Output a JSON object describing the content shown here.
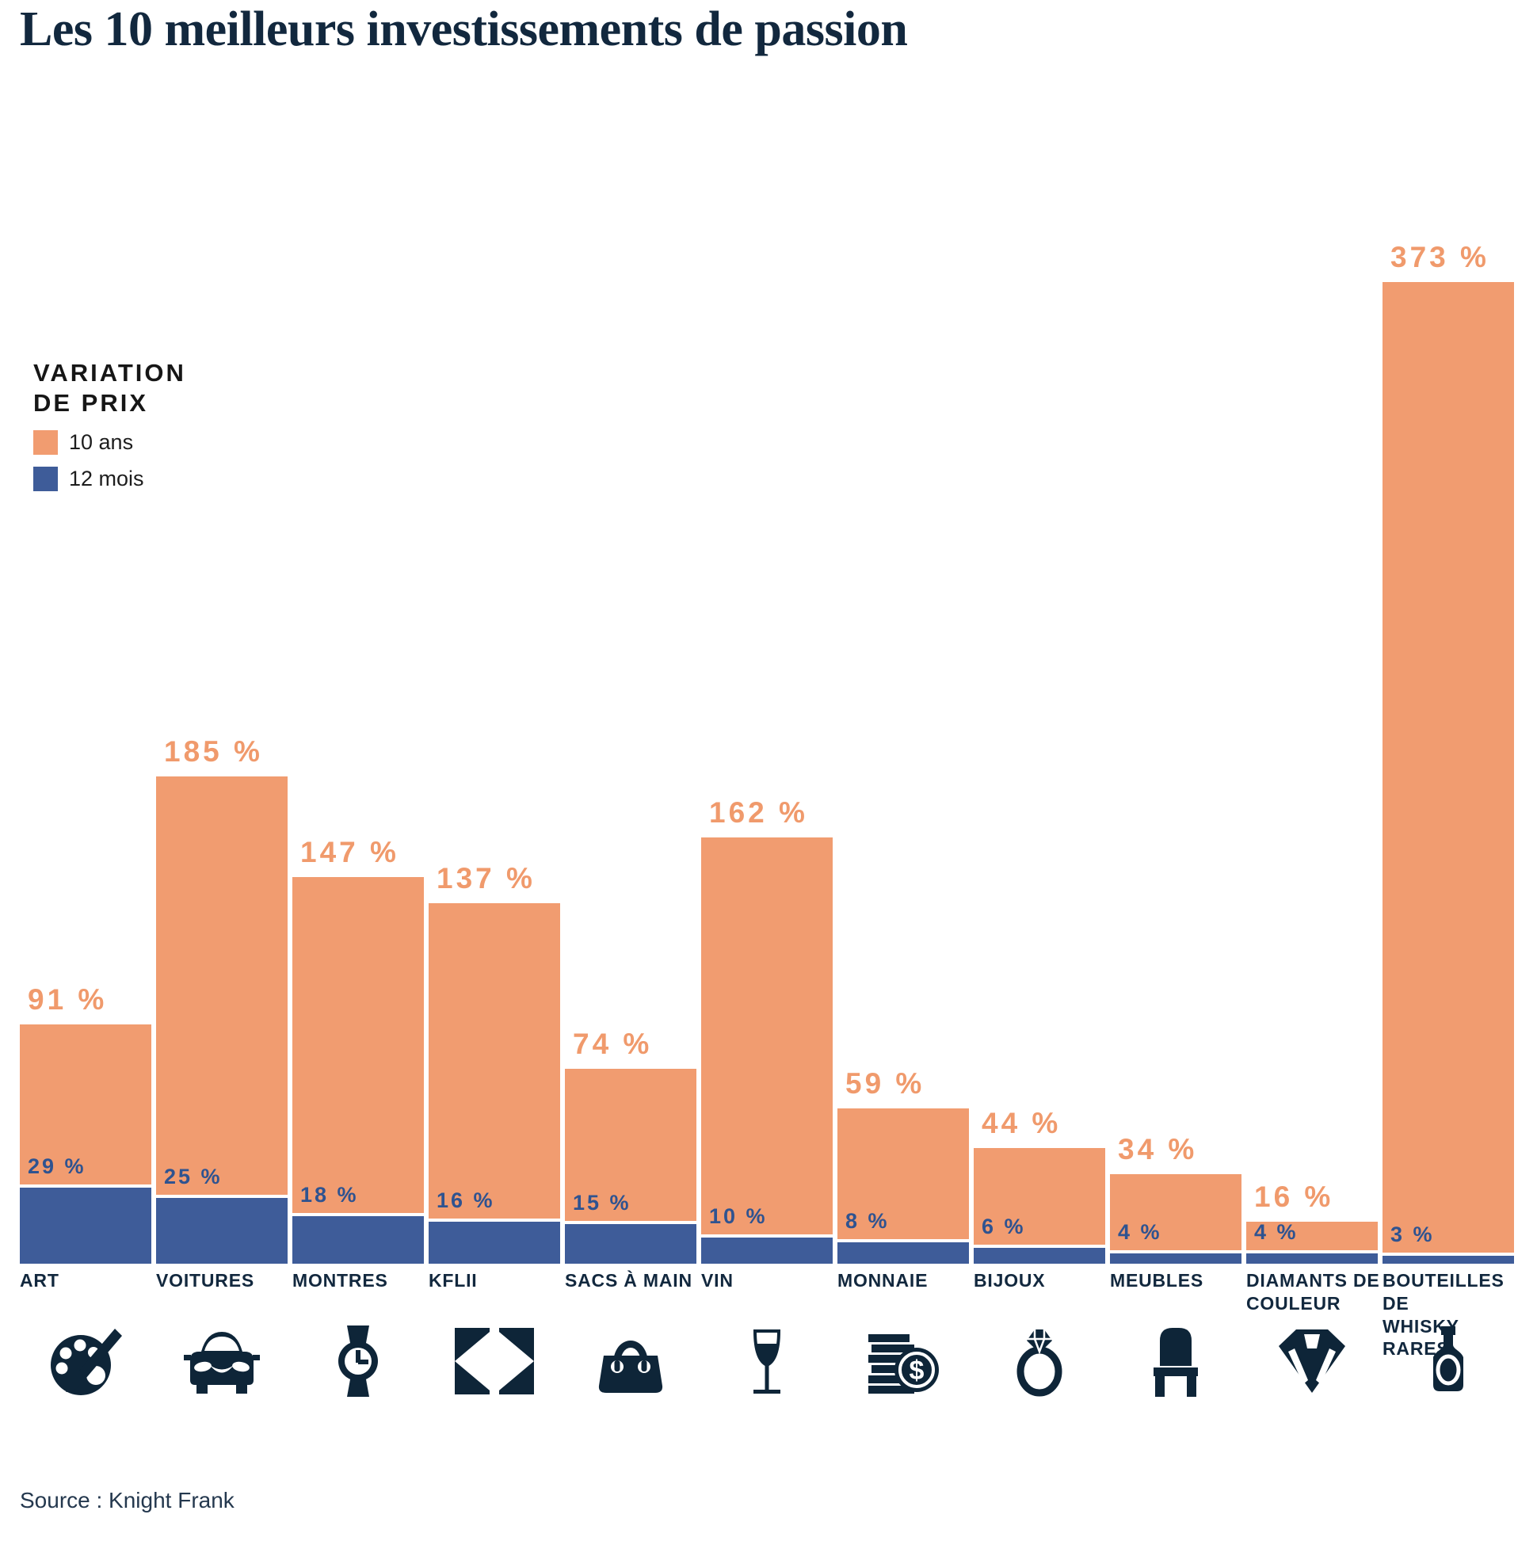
{
  "page": {
    "title": "Les 10 meilleurs investissements de passion",
    "source": "Source : Knight Frank",
    "background": "#FFFFFF"
  },
  "legend": {
    "title_lines": [
      "VARIATION",
      "DE PRIX"
    ],
    "items": [
      {
        "label": "10 ans",
        "color": "#F19C70"
      },
      {
        "label": "12 mois",
        "color": "#3E5C99"
      }
    ]
  },
  "chart_data": {
    "type": "bar",
    "unit": "%",
    "value_suffix": " %",
    "title": "Les 10 meilleurs investissements de passion",
    "categories": [
      "ART",
      "VOITURES",
      "MONTRES",
      "KFLII",
      "SACS À MAIN",
      "VIN",
      "MONNAIE",
      "BIJOUX",
      "MEUBLES",
      "DIAMANTS DE COULEUR",
      "BOUTEILLES DE WHISKY RARES"
    ],
    "category_lines": [
      [
        "ART"
      ],
      [
        "VOITURES"
      ],
      [
        "MONTRES"
      ],
      [
        "KFLII"
      ],
      [
        "SACS À MAIN"
      ],
      [
        "VIN"
      ],
      [
        "MONNAIE"
      ],
      [
        "BIJOUX"
      ],
      [
        "MEUBLES"
      ],
      [
        "DIAMANTS DE",
        "COULEUR"
      ],
      [
        "BOUTEILLES DE",
        "WHISKY RARES"
      ]
    ],
    "icons": [
      "palette-icon",
      "car-icon",
      "watch-icon",
      "kflii-logo-icon",
      "handbag-icon",
      "wine-glass-icon",
      "coins-icon",
      "ring-icon",
      "chair-icon",
      "diamond-icon",
      "whisky-bottle-icon"
    ],
    "series": [
      {
        "name": "10 ans",
        "color": "#F19C70",
        "label_color": "#F09A6C",
        "values": [
          91,
          185,
          147,
          137,
          74,
          162,
          59,
          44,
          34,
          16,
          373
        ]
      },
      {
        "name": "12 mois",
        "color": "#3E5C99",
        "label_color": "#2F5390",
        "values": [
          29,
          25,
          18,
          16,
          15,
          10,
          8,
          6,
          4,
          4,
          3
        ]
      }
    ],
    "ylim": [
      0,
      400
    ],
    "grid": false,
    "axes_hidden": true,
    "legend_position": "upper-left",
    "bar_orientation": "vertical",
    "stacked_display": "overlay-from-baseline",
    "icon_color": "#0E2538",
    "category_label_color": "#12283E"
  }
}
